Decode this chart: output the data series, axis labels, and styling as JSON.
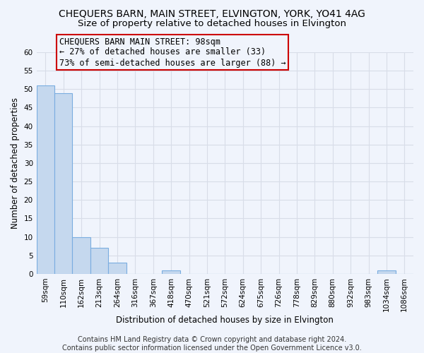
{
  "title": "CHEQUERS BARN, MAIN STREET, ELVINGTON, YORK, YO41 4AG",
  "subtitle": "Size of property relative to detached houses in Elvington",
  "xlabel": "Distribution of detached houses by size in Elvington",
  "ylabel": "Number of detached properties",
  "bar_labels": [
    "59sqm",
    "110sqm",
    "162sqm",
    "213sqm",
    "264sqm",
    "316sqm",
    "367sqm",
    "418sqm",
    "470sqm",
    "521sqm",
    "572sqm",
    "624sqm",
    "675sqm",
    "726sqm",
    "778sqm",
    "829sqm",
    "880sqm",
    "932sqm",
    "983sqm",
    "1034sqm",
    "1086sqm"
  ],
  "bar_values": [
    51,
    49,
    10,
    7,
    3,
    0,
    0,
    1,
    0,
    0,
    0,
    0,
    0,
    0,
    0,
    0,
    0,
    0,
    0,
    1,
    0
  ],
  "bar_color": "#c5d8ee",
  "bar_edge_color": "#7aade0",
  "ylim": [
    0,
    60
  ],
  "yticks": [
    0,
    5,
    10,
    15,
    20,
    25,
    30,
    35,
    40,
    45,
    50,
    55,
    60
  ],
  "annotation_box_text": "CHEQUERS BARN MAIN STREET: 98sqm\n← 27% of detached houses are smaller (33)\n73% of semi-detached houses are larger (88) →",
  "annotation_box_color": "#cc0000",
  "background_color": "#f0f4fc",
  "grid_color": "#d8dde8",
  "footer_line1": "Contains HM Land Registry data © Crown copyright and database right 2024.",
  "footer_line2": "Contains public sector information licensed under the Open Government Licence v3.0.",
  "title_fontsize": 10,
  "subtitle_fontsize": 9.5,
  "annotation_fontsize": 8.5,
  "axis_label_fontsize": 8.5,
  "tick_fontsize": 7.5,
  "footer_fontsize": 7
}
